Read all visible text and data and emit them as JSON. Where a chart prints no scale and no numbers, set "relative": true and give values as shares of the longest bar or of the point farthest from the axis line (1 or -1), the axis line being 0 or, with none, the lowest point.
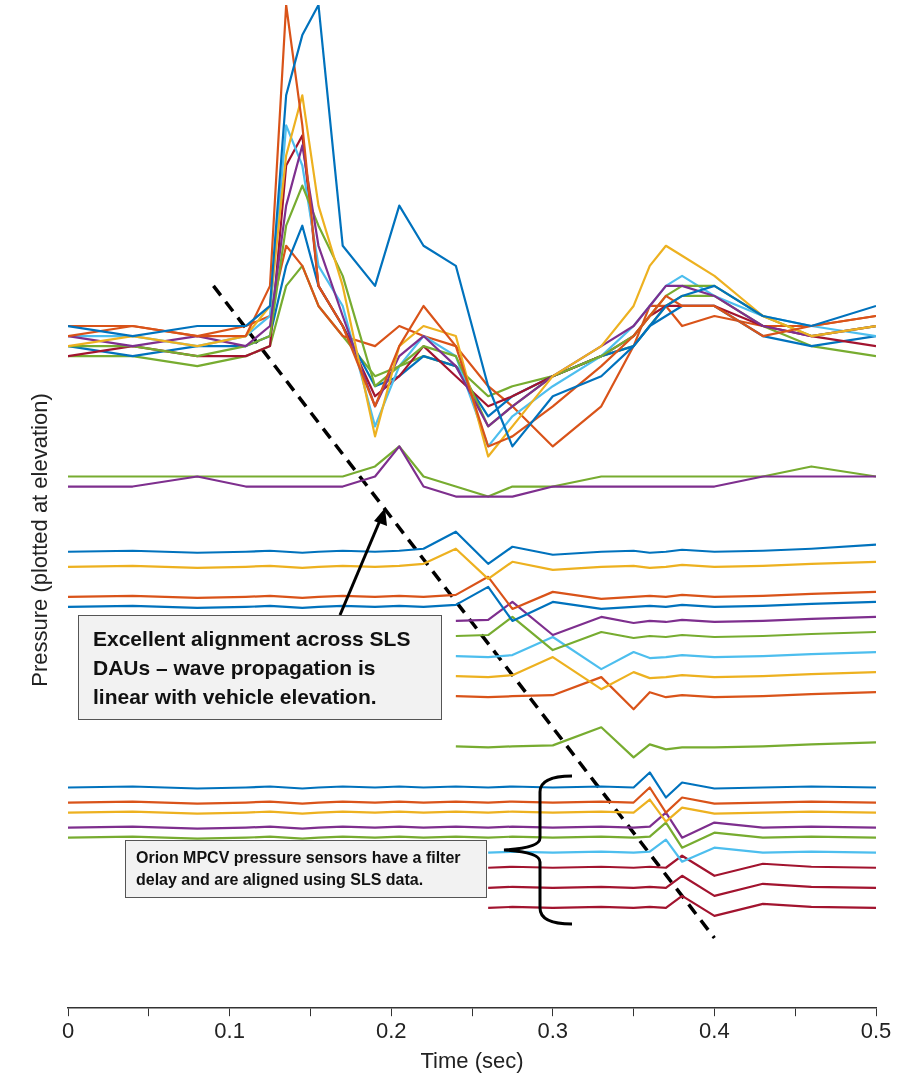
{
  "chart_data": {
    "type": "line",
    "relative": true,
    "xlabel": "Time (sec)",
    "ylabel": "Pressure (plotted at elevation)",
    "grid": false,
    "legend": false,
    "xlim": [
      0,
      0.5
    ],
    "xticks": [
      0,
      {
        "value": 0.05,
        "label": null
      },
      0.1,
      {
        "value": 0.15,
        "label": null
      },
      0.2,
      {
        "value": 0.25,
        "label": null
      },
      0.3,
      {
        "value": 0.35,
        "label": null
      },
      0.4,
      {
        "value": 0.45,
        "label": null
      },
      0.5
    ],
    "x": [
      0,
      0.04,
      0.08,
      0.11,
      0.125,
      0.135,
      0.145,
      0.155,
      0.17,
      0.19,
      0.205,
      0.22,
      0.24,
      0.26,
      0.275,
      0.3,
      0.33,
      0.35,
      0.36,
      0.37,
      0.38,
      0.4,
      0.43,
      0.46,
      0.5
    ],
    "annotations": [
      "Excellent alignment across SLS DAUs – wave propagation is linear with vehicle elevation.",
      "Orion MPCV pressure sensors have a filter delay and are aligned using SLS data."
    ],
    "series": [
      {
        "color": "#0072bd",
        "values": [
          0.68,
          0.67,
          0.68,
          0.68,
          0.7,
          0.91,
          0.97,
          1.0,
          0.76,
          0.72,
          0.8,
          0.76,
          0.74,
          0.62,
          0.56,
          0.61,
          0.63,
          0.66,
          0.68,
          0.7,
          0.71,
          0.72,
          0.69,
          0.68,
          0.7
        ]
      },
      {
        "color": "#d95319",
        "values": [
          0.67,
          0.68,
          0.67,
          0.67,
          0.72,
          1.0,
          0.88,
          0.72,
          0.68,
          0.6,
          0.66,
          0.7,
          0.66,
          0.56,
          0.57,
          0.6,
          0.64,
          0.67,
          0.69,
          0.71,
          0.7,
          0.7,
          0.67,
          0.68,
          0.69
        ]
      },
      {
        "color": "#edb120",
        "values": [
          0.66,
          0.67,
          0.66,
          0.67,
          0.7,
          0.85,
          0.91,
          0.8,
          0.72,
          0.57,
          0.66,
          0.68,
          0.67,
          0.55,
          0.58,
          0.63,
          0.66,
          0.7,
          0.74,
          0.76,
          0.75,
          0.73,
          0.69,
          0.67,
          0.68
        ]
      },
      {
        "color": "#7e2f8e",
        "values": [
          0.67,
          0.66,
          0.67,
          0.66,
          0.68,
          0.8,
          0.86,
          0.76,
          0.69,
          0.6,
          0.65,
          0.67,
          0.64,
          0.58,
          0.6,
          0.63,
          0.66,
          0.68,
          0.7,
          0.72,
          0.72,
          0.71,
          0.68,
          0.67,
          0.68
        ]
      },
      {
        "color": "#77ac30",
        "values": [
          0.66,
          0.66,
          0.65,
          0.66,
          0.67,
          0.78,
          0.82,
          0.78,
          0.73,
          0.62,
          0.64,
          0.66,
          0.65,
          0.58,
          0.6,
          0.63,
          0.65,
          0.67,
          0.69,
          0.71,
          0.72,
          0.72,
          0.69,
          0.67,
          0.68
        ]
      },
      {
        "color": "#4dbeee",
        "values": [
          0.67,
          0.67,
          0.66,
          0.67,
          0.69,
          0.88,
          0.84,
          0.74,
          0.7,
          0.58,
          0.64,
          0.67,
          0.65,
          0.56,
          0.59,
          0.62,
          0.65,
          0.68,
          0.7,
          0.72,
          0.73,
          0.71,
          0.69,
          0.68,
          0.67
        ]
      },
      {
        "color": "#a2142f",
        "values": [
          0.65,
          0.66,
          0.65,
          0.65,
          0.66,
          0.84,
          0.87,
          0.72,
          0.68,
          0.61,
          0.63,
          0.66,
          0.63,
          0.6,
          0.61,
          0.63,
          0.65,
          0.67,
          0.69,
          0.7,
          0.7,
          0.7,
          0.68,
          0.67,
          0.66
        ]
      },
      {
        "color": "#0072bd",
        "values": [
          0.66,
          0.65,
          0.66,
          0.66,
          0.67,
          0.74,
          0.78,
          0.72,
          0.68,
          0.62,
          0.63,
          0.65,
          0.64,
          0.59,
          0.61,
          0.63,
          0.65,
          0.66,
          0.68,
          0.69,
          0.7,
          0.7,
          0.67,
          0.66,
          0.67
        ]
      },
      {
        "color": "#d95319",
        "values": [
          0.68,
          0.68,
          0.67,
          0.68,
          0.69,
          0.76,
          0.74,
          0.7,
          0.67,
          0.66,
          0.68,
          0.67,
          0.66,
          0.62,
          0.6,
          0.56,
          0.6,
          0.66,
          0.7,
          0.7,
          0.68,
          0.69,
          0.68,
          0.68,
          0.69
        ]
      },
      {
        "color": "#77ac30",
        "values": [
          0.65,
          0.65,
          0.64,
          0.65,
          0.66,
          0.72,
          0.74,
          0.7,
          0.67,
          0.63,
          0.64,
          0.65,
          0.64,
          0.61,
          0.62,
          0.63,
          0.65,
          0.66,
          0.68,
          0.7,
          0.71,
          0.71,
          0.68,
          0.66,
          0.65
        ]
      },
      {
        "color": "#7e2f8e",
        "values": [
          0.52,
          0.52,
          0.53,
          0.52,
          0.52,
          0.52,
          0.52,
          0.52,
          0.52,
          0.53,
          0.56,
          0.52,
          0.51,
          0.51,
          0.51,
          0.52,
          0.52,
          0.52,
          0.52,
          0.52,
          0.52,
          0.52,
          0.53,
          0.53,
          0.53
        ]
      },
      {
        "color": "#77ac30",
        "values": [
          0.53,
          0.53,
          0.53,
          0.53,
          0.53,
          0.53,
          0.53,
          0.53,
          0.53,
          0.54,
          0.56,
          0.53,
          0.52,
          0.51,
          0.52,
          0.52,
          0.53,
          0.53,
          0.53,
          0.53,
          0.53,
          0.53,
          0.53,
          0.54,
          0.53
        ]
      },
      {
        "color": "#0072bd",
        "values": [
          0.455,
          0.456,
          0.454,
          0.455,
          0.456,
          0.455,
          0.454,
          0.455,
          0.456,
          0.455,
          0.456,
          0.458,
          0.475,
          0.443,
          0.46,
          0.452,
          0.455,
          0.456,
          0.454,
          0.455,
          0.457,
          0.455,
          0.456,
          0.458,
          0.462
        ]
      },
      {
        "color": "#edb120",
        "values": [
          0.44,
          0.441,
          0.439,
          0.44,
          0.441,
          0.44,
          0.439,
          0.44,
          0.441,
          0.44,
          0.441,
          0.443,
          0.458,
          0.428,
          0.445,
          0.437,
          0.44,
          0.441,
          0.439,
          0.44,
          0.442,
          0.44,
          0.441,
          0.443,
          0.445
        ]
      },
      {
        "color": "#d95319",
        "values": [
          0.41,
          0.411,
          0.409,
          0.41,
          0.411,
          0.41,
          0.409,
          0.41,
          0.411,
          0.41,
          0.411,
          0.41,
          0.412,
          0.43,
          0.398,
          0.415,
          0.408,
          0.41,
          0.411,
          0.41,
          0.412,
          0.41,
          0.411,
          0.413,
          0.415
        ]
      },
      {
        "color": "#0072bd",
        "values": [
          0.4,
          0.401,
          0.399,
          0.4,
          0.401,
          0.4,
          0.399,
          0.4,
          0.401,
          0.4,
          0.401,
          0.4,
          0.402,
          0.42,
          0.386,
          0.405,
          0.398,
          0.4,
          0.401,
          0.4,
          0.402,
          0.4,
          0.401,
          0.403,
          0.405
        ]
      },
      {
        "color": "#7e2f8e",
        "values": [
          null,
          null,
          null,
          null,
          null,
          null,
          null,
          null,
          null,
          null,
          null,
          null,
          0.386,
          0.387,
          0.405,
          0.372,
          0.39,
          0.384,
          0.386,
          0.385,
          0.387,
          0.385,
          0.386,
          0.388,
          0.39
        ]
      },
      {
        "color": "#77ac30",
        "values": [
          null,
          null,
          null,
          null,
          null,
          null,
          null,
          null,
          null,
          null,
          null,
          null,
          0.371,
          0.372,
          0.39,
          0.357,
          0.375,
          0.369,
          0.371,
          0.37,
          0.372,
          0.37,
          0.371,
          0.373,
          0.375
        ]
      },
      {
        "color": "#4dbeee",
        "values": [
          null,
          null,
          null,
          null,
          null,
          null,
          null,
          null,
          null,
          null,
          null,
          null,
          0.351,
          0.35,
          0.352,
          0.37,
          0.338,
          0.355,
          0.349,
          0.35,
          0.352,
          0.35,
          0.351,
          0.353,
          0.355
        ]
      },
      {
        "color": "#edb120",
        "values": [
          null,
          null,
          null,
          null,
          null,
          null,
          null,
          null,
          null,
          null,
          null,
          null,
          0.331,
          0.33,
          0.332,
          0.35,
          0.318,
          0.335,
          0.329,
          0.33,
          0.332,
          0.33,
          0.331,
          0.333,
          0.335
        ]
      },
      {
        "color": "#d95319",
        "values": [
          null,
          null,
          null,
          null,
          null,
          null,
          null,
          null,
          null,
          null,
          null,
          null,
          0.311,
          0.31,
          0.311,
          0.312,
          0.33,
          0.298,
          0.315,
          0.31,
          0.312,
          0.31,
          0.311,
          0.313,
          0.315
        ]
      },
      {
        "color": "#77ac30",
        "values": [
          null,
          null,
          null,
          null,
          null,
          null,
          null,
          null,
          null,
          null,
          null,
          null,
          0.261,
          0.26,
          0.261,
          0.262,
          0.28,
          0.25,
          0.263,
          0.258,
          0.26,
          0.26,
          0.261,
          0.263,
          0.265
        ]
      },
      {
        "color": "#0072bd",
        "values": [
          0.22,
          0.221,
          0.219,
          0.22,
          0.221,
          0.22,
          0.219,
          0.22,
          0.221,
          0.22,
          0.221,
          0.22,
          0.221,
          0.22,
          0.221,
          0.22,
          0.221,
          0.22,
          0.235,
          0.21,
          0.225,
          0.219,
          0.22,
          0.221,
          0.22
        ]
      },
      {
        "color": "#d95319",
        "values": [
          0.205,
          0.206,
          0.204,
          0.205,
          0.206,
          0.205,
          0.204,
          0.205,
          0.206,
          0.205,
          0.206,
          0.205,
          0.206,
          0.205,
          0.206,
          0.205,
          0.206,
          0.205,
          0.22,
          0.195,
          0.21,
          0.204,
          0.205,
          0.206,
          0.205
        ]
      },
      {
        "color": "#edb120",
        "values": [
          0.195,
          0.196,
          0.194,
          0.195,
          0.196,
          0.195,
          0.194,
          0.195,
          0.196,
          0.195,
          0.196,
          0.195,
          0.196,
          0.195,
          0.196,
          0.195,
          0.196,
          0.195,
          0.208,
          0.186,
          0.2,
          0.194,
          0.195,
          0.196,
          0.195
        ]
      },
      {
        "color": "#7e2f8e",
        "values": [
          0.18,
          0.181,
          0.179,
          0.18,
          0.181,
          0.18,
          0.179,
          0.18,
          0.181,
          0.18,
          0.181,
          0.18,
          0.181,
          0.18,
          0.181,
          0.18,
          0.181,
          0.18,
          0.181,
          0.195,
          0.17,
          0.185,
          0.18,
          0.181,
          0.18
        ]
      },
      {
        "color": "#77ac30",
        "values": [
          0.17,
          0.171,
          0.169,
          0.17,
          0.171,
          0.17,
          0.169,
          0.17,
          0.171,
          0.17,
          0.171,
          0.17,
          0.171,
          0.17,
          0.171,
          0.17,
          0.171,
          0.17,
          0.171,
          0.185,
          0.16,
          0.175,
          0.17,
          0.171,
          0.17
        ]
      },
      {
        "color": "#4dbeee",
        "values": [
          null,
          null,
          null,
          null,
          null,
          null,
          null,
          null,
          null,
          null,
          null,
          null,
          null,
          0.155,
          0.156,
          0.155,
          0.156,
          0.155,
          0.156,
          0.168,
          0.146,
          0.16,
          0.155,
          0.156,
          0.155
        ]
      },
      {
        "color": "#a2142f",
        "values": [
          null,
          null,
          null,
          null,
          null,
          null,
          null,
          null,
          null,
          null,
          null,
          null,
          null,
          0.14,
          0.141,
          0.14,
          0.141,
          0.14,
          0.141,
          0.14,
          0.152,
          0.132,
          0.144,
          0.141,
          0.14
        ]
      },
      {
        "color": "#a2142f",
        "values": [
          null,
          null,
          null,
          null,
          null,
          null,
          null,
          null,
          null,
          null,
          null,
          null,
          null,
          0.12,
          0.121,
          0.12,
          0.121,
          0.12,
          0.121,
          0.12,
          0.132,
          0.112,
          0.124,
          0.121,
          0.12
        ]
      },
      {
        "color": "#a2142f",
        "values": [
          null,
          null,
          null,
          null,
          null,
          null,
          null,
          null,
          null,
          null,
          null,
          null,
          null,
          0.1,
          0.101,
          0.1,
          0.101,
          0.1,
          0.101,
          0.1,
          0.112,
          0.092,
          0.104,
          0.101,
          0.1
        ]
      },
      {
        "type": "line",
        "color": "#000000",
        "line_style": "dashed",
        "x": [
          0.09,
          0.4
        ],
        "values": [
          0.72,
          0.07
        ]
      }
    ]
  }
}
